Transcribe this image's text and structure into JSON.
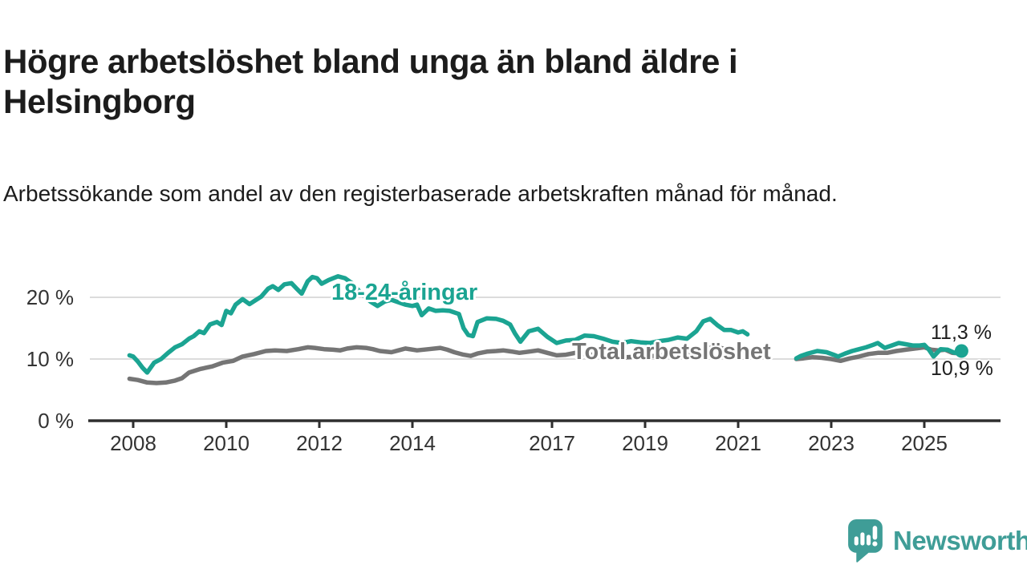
{
  "header": {
    "title": "Högre arbetslöshet bland unga än bland äldre i Helsingborg",
    "subtitle": "Arbetssökande som andel av den registerbaserade arbetskraften månad för månad."
  },
  "branding": {
    "name": "Newsworthy",
    "color": "#3f9d97",
    "icon": "newsworthy-chart-bubble-icon"
  },
  "chart_data": {
    "type": "line",
    "unit": "%",
    "x_ticks": [
      "2008",
      "2010",
      "2012",
      "2014",
      "2017",
      "2019",
      "2021",
      "2023",
      "2025"
    ],
    "y_ticks": [
      {
        "value": 0,
        "label": "0 %"
      },
      {
        "value": 10,
        "label": "10 %"
      },
      {
        "value": 20,
        "label": "20 %"
      }
    ],
    "gridlines": [
      10,
      20
    ],
    "x_range": [
      2007.9,
      2026.2
    ],
    "y_range": [
      0,
      26
    ],
    "legend_position": "inline-labels",
    "series": [
      {
        "name": "Total arbetslöshet",
        "color": "#757575",
        "end_label": "10,9 %",
        "end_value": 10.9,
        "end_dot": false,
        "segments": [
          [
            [
              2007.92,
              6.8
            ],
            [
              2008.1,
              6.6
            ],
            [
              2008.3,
              6.2
            ],
            [
              2008.5,
              6.1
            ],
            [
              2008.7,
              6.2
            ],
            [
              2008.9,
              6.5
            ],
            [
              2009.05,
              6.9
            ],
            [
              2009.2,
              7.8
            ],
            [
              2009.45,
              8.4
            ],
            [
              2009.7,
              8.8
            ],
            [
              2009.92,
              9.4
            ],
            [
              2010.15,
              9.7
            ],
            [
              2010.35,
              10.4
            ],
            [
              2010.6,
              10.8
            ],
            [
              2010.85,
              11.3
            ],
            [
              2011.05,
              11.4
            ],
            [
              2011.3,
              11.3
            ],
            [
              2011.55,
              11.6
            ],
            [
              2011.75,
              11.9
            ],
            [
              2011.9,
              11.8
            ],
            [
              2012.1,
              11.6
            ],
            [
              2012.3,
              11.5
            ],
            [
              2012.45,
              11.4
            ],
            [
              2012.6,
              11.7
            ],
            [
              2012.8,
              11.9
            ],
            [
              2013.0,
              11.8
            ],
            [
              2013.15,
              11.6
            ],
            [
              2013.3,
              11.3
            ],
            [
              2013.55,
              11.1
            ],
            [
              2013.7,
              11.4
            ],
            [
              2013.85,
              11.7
            ],
            [
              2014.1,
              11.4
            ],
            [
              2014.35,
              11.6
            ],
            [
              2014.6,
              11.8
            ],
            [
              2014.75,
              11.5
            ],
            [
              2014.9,
              11.1
            ],
            [
              2015.1,
              10.7
            ],
            [
              2015.25,
              10.5
            ],
            [
              2015.4,
              10.9
            ],
            [
              2015.6,
              11.2
            ],
            [
              2015.8,
              11.3
            ],
            [
              2015.95,
              11.4
            ],
            [
              2016.15,
              11.2
            ],
            [
              2016.3,
              11.0
            ],
            [
              2016.5,
              11.2
            ],
            [
              2016.7,
              11.4
            ],
            [
              2016.9,
              11.0
            ],
            [
              2017.1,
              10.6
            ],
            [
              2017.3,
              10.7
            ],
            [
              2017.5,
              11.0
            ],
            [
              2017.7,
              10.8
            ],
            [
              2018.0,
              10.6
            ],
            [
              2018.3,
              10.4
            ],
            [
              2018.6,
              10.3
            ],
            [
              2018.9,
              10.4
            ],
            [
              2019.2,
              10.5
            ],
            [
              2019.5,
              10.7
            ],
            [
              2019.8,
              10.9
            ],
            [
              2020.0,
              11.0
            ],
            [
              2020.25,
              11.6
            ],
            [
              2020.45,
              11.9
            ],
            [
              2020.7,
              11.7
            ],
            [
              2020.9,
              11.5
            ],
            [
              2021.05,
              11.3
            ],
            [
              2021.2,
              11.2
            ]
          ],
          [
            [
              2022.25,
              10.0
            ],
            [
              2022.4,
              10.1
            ],
            [
              2022.6,
              10.3
            ],
            [
              2022.8,
              10.2
            ],
            [
              2023.0,
              10.0
            ],
            [
              2023.2,
              9.7
            ],
            [
              2023.4,
              10.1
            ],
            [
              2023.6,
              10.4
            ],
            [
              2023.8,
              10.8
            ],
            [
              2024.0,
              11.0
            ],
            [
              2024.2,
              11.0
            ],
            [
              2024.4,
              11.3
            ],
            [
              2024.6,
              11.5
            ],
            [
              2024.8,
              11.7
            ],
            [
              2025.0,
              11.9
            ],
            [
              2025.15,
              11.5
            ],
            [
              2025.3,
              11.4
            ],
            [
              2025.45,
              11.5
            ],
            [
              2025.6,
              11.0
            ],
            [
              2025.8,
              10.9
            ]
          ]
        ]
      },
      {
        "name": "18-24-åringar",
        "color": "#1ba492",
        "end_label": "11,3 %",
        "end_value": 11.3,
        "end_dot": true,
        "segments": [
          [
            [
              2007.92,
              10.6
            ],
            [
              2008.0,
              10.4
            ],
            [
              2008.1,
              9.6
            ],
            [
              2008.2,
              8.6
            ],
            [
              2008.3,
              7.8
            ],
            [
              2008.45,
              9.4
            ],
            [
              2008.6,
              10.0
            ],
            [
              2008.75,
              11.0
            ],
            [
              2008.9,
              11.9
            ],
            [
              2009.05,
              12.4
            ],
            [
              2009.2,
              13.3
            ],
            [
              2009.3,
              13.7
            ],
            [
              2009.42,
              14.5
            ],
            [
              2009.52,
              14.2
            ],
            [
              2009.65,
              15.6
            ],
            [
              2009.8,
              16.0
            ],
            [
              2009.9,
              15.5
            ],
            [
              2010.0,
              17.8
            ],
            [
              2010.1,
              17.4
            ],
            [
              2010.2,
              18.8
            ],
            [
              2010.35,
              19.7
            ],
            [
              2010.5,
              18.9
            ],
            [
              2010.62,
              19.5
            ],
            [
              2010.75,
              20.1
            ],
            [
              2010.9,
              21.4
            ],
            [
              2011.0,
              21.8
            ],
            [
              2011.12,
              21.2
            ],
            [
              2011.25,
              22.1
            ],
            [
              2011.4,
              22.3
            ],
            [
              2011.5,
              21.5
            ],
            [
              2011.62,
              20.6
            ],
            [
              2011.75,
              22.6
            ],
            [
              2011.85,
              23.3
            ],
            [
              2011.95,
              23.1
            ],
            [
              2012.05,
              22.2
            ],
            [
              2012.2,
              22.8
            ],
            [
              2012.4,
              23.4
            ],
            [
              2012.55,
              23.1
            ],
            [
              2012.7,
              22.3
            ],
            [
              2012.82,
              21.3
            ],
            [
              2012.95,
              20.3
            ],
            [
              2013.1,
              19.3
            ],
            [
              2013.25,
              18.6
            ],
            [
              2013.4,
              19.3
            ],
            [
              2013.55,
              19.6
            ],
            [
              2013.7,
              19.2
            ],
            [
              2013.85,
              18.8
            ],
            [
              2014.0,
              18.6
            ],
            [
              2014.1,
              18.8
            ],
            [
              2014.2,
              17.1
            ],
            [
              2014.35,
              18.2
            ],
            [
              2014.5,
              17.8
            ],
            [
              2014.65,
              17.9
            ],
            [
              2014.8,
              17.8
            ],
            [
              2015.0,
              17.3
            ],
            [
              2015.1,
              15.0
            ],
            [
              2015.2,
              13.9
            ],
            [
              2015.3,
              13.7
            ],
            [
              2015.4,
              16.0
            ],
            [
              2015.6,
              16.6
            ],
            [
              2015.8,
              16.5
            ],
            [
              2015.95,
              16.2
            ],
            [
              2016.1,
              15.6
            ],
            [
              2016.2,
              14.2
            ],
            [
              2016.32,
              12.8
            ],
            [
              2016.5,
              14.5
            ],
            [
              2016.7,
              14.9
            ],
            [
              2016.9,
              13.6
            ],
            [
              2017.1,
              12.6
            ],
            [
              2017.3,
              13.0
            ],
            [
              2017.5,
              13.1
            ],
            [
              2017.7,
              13.8
            ],
            [
              2017.9,
              13.7
            ],
            [
              2018.1,
              13.3
            ],
            [
              2018.3,
              12.8
            ],
            [
              2018.5,
              12.6
            ],
            [
              2018.7,
              12.9
            ],
            [
              2018.9,
              12.7
            ],
            [
              2019.1,
              12.6
            ],
            [
              2019.3,
              12.9
            ],
            [
              2019.5,
              13.1
            ],
            [
              2019.7,
              13.5
            ],
            [
              2019.9,
              13.3
            ],
            [
              2020.1,
              14.5
            ],
            [
              2020.25,
              16.1
            ],
            [
              2020.4,
              16.5
            ],
            [
              2020.55,
              15.5
            ],
            [
              2020.7,
              14.7
            ],
            [
              2020.85,
              14.7
            ],
            [
              2021.0,
              14.3
            ],
            [
              2021.1,
              14.5
            ],
            [
              2021.2,
              14.0
            ]
          ],
          [
            [
              2022.25,
              10.1
            ],
            [
              2022.35,
              10.5
            ],
            [
              2022.5,
              10.9
            ],
            [
              2022.7,
              11.3
            ],
            [
              2022.9,
              11.1
            ],
            [
              2023.05,
              10.7
            ],
            [
              2023.15,
              10.4
            ],
            [
              2023.3,
              10.9
            ],
            [
              2023.45,
              11.3
            ],
            [
              2023.6,
              11.6
            ],
            [
              2023.75,
              11.9
            ],
            [
              2023.9,
              12.3
            ],
            [
              2024.0,
              12.6
            ],
            [
              2024.15,
              11.8
            ],
            [
              2024.3,
              12.2
            ],
            [
              2024.45,
              12.6
            ],
            [
              2024.6,
              12.4
            ],
            [
              2024.75,
              12.2
            ],
            [
              2024.9,
              12.2
            ],
            [
              2025.0,
              12.3
            ],
            [
              2025.1,
              11.5
            ],
            [
              2025.2,
              10.4
            ],
            [
              2025.35,
              11.6
            ],
            [
              2025.5,
              11.5
            ],
            [
              2025.65,
              11.0
            ],
            [
              2025.8,
              11.3
            ]
          ]
        ]
      }
    ]
  }
}
